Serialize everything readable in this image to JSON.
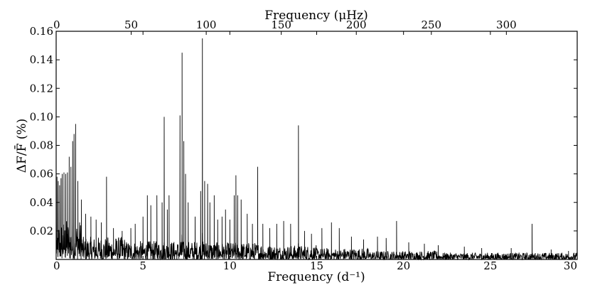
{
  "chart_data": {
    "type": "line",
    "title": "",
    "xlabel": "Frequency (d⁻¹)",
    "x2label": "Frequency (μHz)",
    "ylabel": "ΔF/F̄ (%)",
    "xlim": [
      0,
      30
    ],
    "ylim": [
      0.0,
      0.16
    ],
    "x2lim": [
      0,
      347.2
    ],
    "x_ticks": [
      0,
      5,
      10,
      15,
      20,
      25,
      30
    ],
    "x2_ticks": [
      0,
      50,
      100,
      150,
      200,
      250,
      300
    ],
    "y_ticks": [
      0.02,
      0.04,
      0.06,
      0.08,
      0.1,
      0.12,
      0.14,
      0.16
    ],
    "y_tick_labels": [
      "0.02",
      "0.04",
      "0.06",
      "0.08",
      "0.10",
      "0.12",
      "0.14",
      "0.16"
    ],
    "grid": false,
    "series": [
      {
        "name": "",
        "color": "#000000",
        "peaks": [
          [
            0.05,
            0.058
          ],
          [
            0.12,
            0.055
          ],
          [
            0.2,
            0.052
          ],
          [
            0.28,
            0.057
          ],
          [
            0.35,
            0.06
          ],
          [
            0.45,
            0.061
          ],
          [
            0.55,
            0.06
          ],
          [
            0.65,
            0.061
          ],
          [
            0.75,
            0.072
          ],
          [
            0.85,
            0.065
          ],
          [
            0.95,
            0.083
          ],
          [
            1.03,
            0.088
          ],
          [
            1.12,
            0.095
          ],
          [
            1.25,
            0.055
          ],
          [
            1.45,
            0.042
          ],
          [
            1.7,
            0.032
          ],
          [
            2.0,
            0.03
          ],
          [
            2.3,
            0.028
          ],
          [
            2.6,
            0.026
          ],
          [
            2.9,
            0.058
          ],
          [
            3.3,
            0.022
          ],
          [
            3.8,
            0.02
          ],
          [
            4.3,
            0.022
          ],
          [
            4.55,
            0.025
          ],
          [
            5.0,
            0.03
          ],
          [
            5.25,
            0.045
          ],
          [
            5.45,
            0.038
          ],
          [
            5.8,
            0.045
          ],
          [
            6.1,
            0.04
          ],
          [
            6.22,
            0.1
          ],
          [
            6.4,
            0.035
          ],
          [
            6.5,
            0.045
          ],
          [
            7.13,
            0.101
          ],
          [
            7.25,
            0.145
          ],
          [
            7.35,
            0.083
          ],
          [
            7.45,
            0.06
          ],
          [
            7.6,
            0.04
          ],
          [
            8.0,
            0.03
          ],
          [
            8.32,
            0.048
          ],
          [
            8.42,
            0.155
          ],
          [
            8.55,
            0.055
          ],
          [
            8.72,
            0.053
          ],
          [
            8.85,
            0.04
          ],
          [
            9.1,
            0.045
          ],
          [
            9.3,
            0.028
          ],
          [
            9.55,
            0.03
          ],
          [
            9.75,
            0.035
          ],
          [
            10.0,
            0.028
          ],
          [
            10.25,
            0.045
          ],
          [
            10.35,
            0.059
          ],
          [
            10.45,
            0.045
          ],
          [
            10.65,
            0.042
          ],
          [
            11.0,
            0.032
          ],
          [
            11.3,
            0.025
          ],
          [
            11.6,
            0.065
          ],
          [
            11.9,
            0.025
          ],
          [
            12.3,
            0.022
          ],
          [
            12.7,
            0.025
          ],
          [
            13.1,
            0.027
          ],
          [
            13.5,
            0.025
          ],
          [
            13.95,
            0.094
          ],
          [
            14.3,
            0.02
          ],
          [
            14.7,
            0.018
          ],
          [
            15.3,
            0.022
          ],
          [
            15.85,
            0.026
          ],
          [
            16.3,
            0.022
          ],
          [
            17.0,
            0.016
          ],
          [
            17.7,
            0.014
          ],
          [
            18.5,
            0.016
          ],
          [
            19.0,
            0.015
          ],
          [
            19.6,
            0.027
          ],
          [
            20.3,
            0.012
          ],
          [
            21.2,
            0.011
          ],
          [
            22.0,
            0.01
          ],
          [
            23.5,
            0.009
          ],
          [
            24.5,
            0.008
          ],
          [
            26.2,
            0.008
          ],
          [
            27.4,
            0.025
          ],
          [
            28.5,
            0.007
          ],
          [
            29.5,
            0.006
          ]
        ]
      }
    ]
  }
}
